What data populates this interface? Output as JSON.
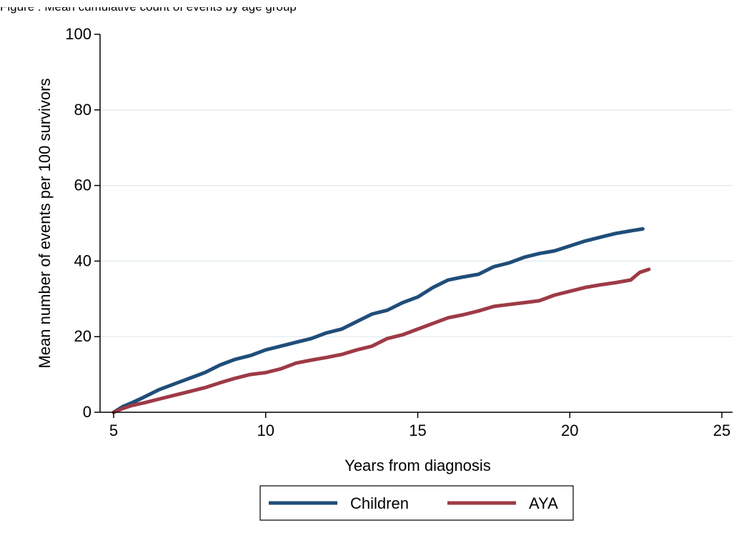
{
  "figure_title": "Figure : Mean cumulative count of events by age group",
  "chart_data": {
    "type": "line",
    "title": "",
    "xlabel": "Years from diagnosis",
    "ylabel": "Mean number of events per 100 survivors",
    "xlim": [
      5,
      25
    ],
    "ylim": [
      0,
      100
    ],
    "xticks": [
      5,
      10,
      15,
      20,
      25
    ],
    "yticks": [
      0,
      20,
      40,
      60,
      80,
      100
    ],
    "grid": "horizontal",
    "legend_position": "bottom",
    "series": [
      {
        "name": "Children",
        "color": "#1f4e79",
        "x": [
          5.0,
          5.3,
          5.6,
          6.0,
          6.5,
          7.0,
          7.5,
          8.0,
          8.5,
          9.0,
          9.5,
          10.0,
          10.5,
          11.0,
          11.5,
          12.0,
          12.5,
          13.0,
          13.5,
          14.0,
          14.5,
          15.0,
          15.5,
          16.0,
          16.5,
          17.0,
          17.5,
          18.0,
          18.5,
          19.0,
          19.5,
          20.0,
          20.5,
          21.0,
          21.5,
          22.0,
          22.4
        ],
        "y": [
          0,
          1.5,
          2.5,
          4,
          6,
          7.5,
          9,
          10.5,
          12.5,
          14,
          15,
          16.5,
          17.5,
          18.5,
          19.5,
          21,
          22,
          24,
          26,
          27,
          29,
          30.5,
          33,
          35,
          35.8,
          36.5,
          38.5,
          39.5,
          41,
          42,
          42.7,
          44,
          45.3,
          46.3,
          47.3,
          48,
          48.5
        ]
      },
      {
        "name": "AYA",
        "color": "#9e3a46",
        "x": [
          5.0,
          5.3,
          5.6,
          6.0,
          6.5,
          7.0,
          7.5,
          8.0,
          8.5,
          9.0,
          9.5,
          10.0,
          10.5,
          11.0,
          11.5,
          12.0,
          12.5,
          13.0,
          13.5,
          14.0,
          14.5,
          15.0,
          15.5,
          16.0,
          16.5,
          17.0,
          17.5,
          18.0,
          18.5,
          19.0,
          19.5,
          20.0,
          20.5,
          21.0,
          21.5,
          22.0,
          22.3,
          22.6
        ],
        "y": [
          0,
          1,
          1.8,
          2.5,
          3.5,
          4.5,
          5.5,
          6.5,
          7.8,
          9,
          10,
          10.5,
          11.5,
          13,
          13.8,
          14.5,
          15.3,
          16.5,
          17.5,
          19.5,
          20.5,
          22,
          23.5,
          25,
          25.8,
          26.8,
          28,
          28.5,
          29,
          29.5,
          31,
          32,
          33,
          33.7,
          34.3,
          35,
          37,
          37.8
        ]
      }
    ]
  }
}
